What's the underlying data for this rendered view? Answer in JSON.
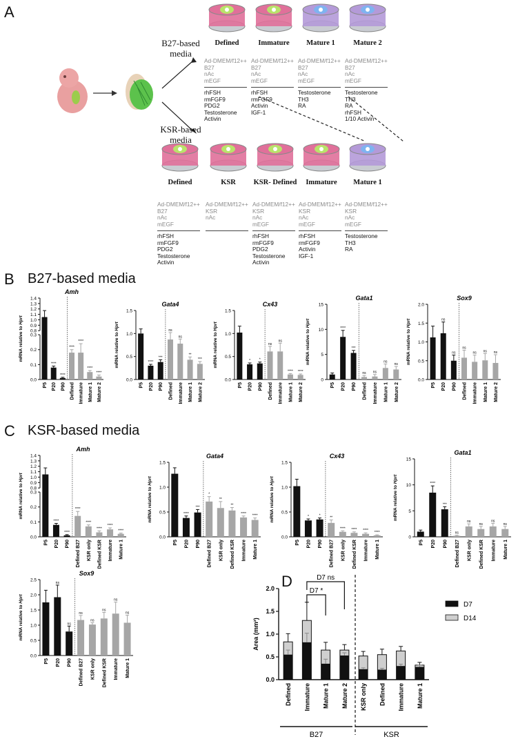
{
  "panel_a": {
    "letter": "A",
    "b27_label": "B27-based media",
    "ksr_label": "KSR-based media",
    "b27_dishes": [
      {
        "title": "Defined",
        "base": [
          "Ad-DMEM/f12++",
          "B27",
          "nAc",
          "mEGF"
        ],
        "add": [
          "rhFSH",
          "rmFGF9",
          "PDG2",
          "Testosterone",
          "Activin"
        ],
        "color": "#e0709a"
      },
      {
        "title": "Immature",
        "base": [
          "Ad-DMEM/f12++",
          "B27",
          "nAc",
          "mEGF"
        ],
        "add": [
          "rhFSH",
          "rmFGF9",
          "Activin",
          "IGF-1"
        ],
        "color": "#e0709a"
      },
      {
        "title": "Mature 1",
        "base": [
          "Ad-DMEM/f12++",
          "B27",
          "nAc",
          "mEGF"
        ],
        "add": [
          "Testosterone",
          "TH3",
          "RA"
        ],
        "color": "#b49ad8"
      },
      {
        "title": "Mature 2",
        "base": [
          "Ad-DMEM/f12++",
          "B27",
          "nAc",
          "mEGF"
        ],
        "add": [
          "Testosterone",
          "TH3",
          "RA",
          "rhFSH",
          "1/10 Activin"
        ],
        "color": "#b49ad8"
      }
    ],
    "ksr_dishes": [
      {
        "title": "Defined",
        "base": [
          "Ad-DMEM/f12++",
          "B27",
          "nAc",
          "mEGF"
        ],
        "add": [
          "rhFSH",
          "rmFGF9",
          "PDG2",
          "Testosterone",
          "Activin"
        ],
        "color": "#e0709a"
      },
      {
        "title": "KSR",
        "base": [
          "Ad-DMEM/f12++",
          "KSR",
          "nAc"
        ],
        "add": [],
        "color": "#e0709a"
      },
      {
        "title": "KSR- Defined",
        "base": [
          "Ad-DMEM/f12++",
          "KSR",
          "nAc",
          "mEGF"
        ],
        "add": [
          "rhFSH",
          "rmFGF9",
          "PDG2",
          "Testosterone",
          "Activin"
        ],
        "color": "#e0709a"
      },
      {
        "title": "Immature",
        "base": [
          "Ad-DMEM/f12++",
          "KSR",
          "nAc",
          "mEGF"
        ],
        "add": [
          "rhFSH",
          "rmFGF9",
          "Activin",
          "IGF-1"
        ],
        "color": "#e0709a"
      },
      {
        "title": "Mature 1",
        "base": [
          "Ad-DMEM/f12++",
          "KSR",
          "nAc",
          "mEGF"
        ],
        "add": [
          "Testosterone",
          "TH3",
          "RA"
        ],
        "color": "#b49ad8"
      }
    ]
  },
  "panel_b": {
    "letter": "B",
    "title": "B27-based media"
  },
  "panel_c": {
    "letter": "C",
    "title": "KSR-based media"
  },
  "panel_d": {
    "letter": "D"
  },
  "ylabel_mrna": "mRNA relative to",
  "ylabel_gene": "Hprt",
  "chart_data": [
    {
      "id": "B-Amh",
      "panel": "B",
      "type": "bar",
      "title": "Amh",
      "broken": true,
      "categories": [
        "P5",
        "P20",
        "P90",
        "Defined",
        "Immature",
        "Mature 1",
        "Mature 2"
      ],
      "values": [
        1.05,
        0.08,
        0.01,
        0.18,
        0.18,
        0.05,
        0.02
      ],
      "errors": [
        0.12,
        0.01,
        0.005,
        0.02,
        0.06,
        0.01,
        0.01
      ],
      "sig": [
        "",
        "****",
        "****",
        "****",
        "****",
        "****",
        "****"
      ],
      "ticks_low": [
        "0.0",
        "0.1",
        "0.2",
        "0.3"
      ],
      "ticks_high": [
        "0.8",
        "0.9",
        "1.0",
        "1.1",
        "1.2",
        "1.3",
        "1.4"
      ]
    },
    {
      "id": "B-Gata4",
      "panel": "B",
      "type": "bar",
      "title": "Gata4",
      "ylim": [
        0,
        1.5
      ],
      "categories": [
        "P5",
        "P20",
        "P90",
        "Defined",
        "Immature",
        "Mature 1",
        "Mature 2"
      ],
      "values": [
        1.0,
        0.3,
        0.38,
        0.87,
        0.78,
        0.43,
        0.34
      ],
      "errors": [
        0.1,
        0.03,
        0.05,
        0.15,
        0.1,
        0.06,
        0.05
      ],
      "sig": [
        "",
        "****",
        "***",
        "ns",
        "ns",
        "**",
        "***"
      ],
      "ticks": [
        "0.0",
        "0.5",
        "1.0",
        "1.5"
      ]
    },
    {
      "id": "B-Cx43",
      "panel": "B",
      "type": "bar",
      "title": "Cx43",
      "ylim": [
        0,
        1.5
      ],
      "categories": [
        "P5",
        "P20",
        "P90",
        "Defined",
        "Immature",
        "Mature 1",
        "Mature 2"
      ],
      "values": [
        1.02,
        0.33,
        0.35,
        0.61,
        0.61,
        0.11,
        0.1
      ],
      "errors": [
        0.14,
        0.03,
        0.03,
        0.11,
        0.18,
        0.02,
        0.02
      ],
      "sig": [
        "",
        "*",
        "*",
        "ns",
        "ns",
        "****",
        "****"
      ],
      "ticks": [
        "0.0",
        "0.5",
        "1.0",
        "1.5"
      ]
    },
    {
      "id": "B-Gata1",
      "panel": "B",
      "type": "bar",
      "title": "Gata1",
      "ylim": [
        0,
        15
      ],
      "categories": [
        "P5",
        "P20",
        "P90",
        "Defined",
        "Immature",
        "Mature 1",
        "Mature 2"
      ],
      "values": [
        1.0,
        8.5,
        5.3,
        0.5,
        0.6,
        2.3,
        2.0
      ],
      "errors": [
        0.3,
        1.3,
        0.5,
        0.3,
        0.4,
        0.8,
        0.6
      ],
      "sig": [
        "",
        "****",
        "***",
        "ns",
        "ns",
        "ns",
        "ns"
      ],
      "ticks": [
        "0",
        "5",
        "10",
        "15"
      ]
    },
    {
      "id": "B-Sox9",
      "panel": "B",
      "type": "bar",
      "title": "Sox9",
      "ylim": [
        0,
        2.0
      ],
      "categories": [
        "P5",
        "P20",
        "P90",
        "Defined",
        "Immature",
        "Mature 1",
        "Mature 2"
      ],
      "values": [
        1.12,
        1.23,
        0.5,
        0.58,
        0.47,
        0.51,
        0.44
      ],
      "errors": [
        0.3,
        0.3,
        0.15,
        0.2,
        0.18,
        0.18,
        0.22
      ],
      "sig": [
        "",
        "ns",
        "ns",
        "ns",
        "ns",
        "ns",
        "ns"
      ],
      "ticks": [
        "0.0",
        "0.5",
        "1.0",
        "1.5",
        "2.0"
      ]
    },
    {
      "id": "C-Amh",
      "panel": "C",
      "type": "bar",
      "title": "Amh",
      "broken": true,
      "categories": [
        "P5",
        "P20",
        "P90",
        "Defined B27",
        "KSR only",
        "Defined KSR",
        "Immature",
        "Mature 1"
      ],
      "values": [
        1.05,
        0.08,
        0.01,
        0.14,
        0.07,
        0.03,
        0.05,
        0.02
      ],
      "errors": [
        0.12,
        0.01,
        0.005,
        0.03,
        0.01,
        0.01,
        0.01,
        0.005
      ],
      "sig": [
        "",
        "****",
        "****",
        "****",
        "****",
        "****",
        "****",
        "****"
      ],
      "ticks_low": [
        "0.0",
        "0.1",
        "0.2",
        "0.3"
      ],
      "ticks_high": [
        "0.8",
        "0.9",
        "1.0",
        "1.1",
        "1.2",
        "1.3",
        "1.4"
      ]
    },
    {
      "id": "C-Gata4",
      "panel": "C",
      "type": "bar",
      "title": "Gata4",
      "ylim": [
        0,
        1.5
      ],
      "categories": [
        "P5",
        "P20",
        "P90",
        "Defined B27",
        "KSR only",
        "Defined KSR",
        "Immature",
        "Mature 1"
      ],
      "values": [
        1.27,
        0.38,
        0.49,
        0.71,
        0.58,
        0.53,
        0.39,
        0.34
      ],
      "errors": [
        0.12,
        0.04,
        0.06,
        0.1,
        0.13,
        0.06,
        0.03,
        0.04
      ],
      "sig": [
        "",
        "****",
        "***",
        "*",
        "**",
        "**",
        "****",
        "****"
      ],
      "ticks": [
        "0.0",
        "0.5",
        "1.0",
        "1.5"
      ]
    },
    {
      "id": "C-Cx43",
      "panel": "C",
      "type": "bar",
      "title": "Cx43",
      "ylim": [
        0,
        1.5
      ],
      "categories": [
        "P5",
        "P20",
        "P90",
        "Defined B27",
        "KSR only",
        "Defined KSR",
        "Immature",
        "Mature 1"
      ],
      "values": [
        1.02,
        0.33,
        0.35,
        0.28,
        0.1,
        0.08,
        0.06,
        0.03
      ],
      "errors": [
        0.14,
        0.03,
        0.03,
        0.06,
        0.02,
        0.02,
        0.02,
        0.01
      ],
      "sig": [
        "",
        "*",
        "*",
        "**",
        "****",
        "****",
        "****",
        "****"
      ],
      "ticks": [
        "0.0",
        "0.5",
        "1.0",
        "1.5"
      ]
    },
    {
      "id": "C-Gata1",
      "panel": "C",
      "type": "bar",
      "title": "Gata1",
      "ylim": [
        0,
        15
      ],
      "categories": [
        "P5",
        "P20",
        "P90",
        "Defined B27",
        "KSR only",
        "Defined KSR",
        "Immature",
        "Mature 1"
      ],
      "values": [
        1.0,
        8.5,
        5.3,
        0.2,
        2.0,
        1.5,
        2.0,
        1.5
      ],
      "errors": [
        0.3,
        1.3,
        0.5,
        0.1,
        0.5,
        0.5,
        0.6,
        0.5
      ],
      "sig": [
        "",
        "****",
        "***",
        "ns",
        "ns",
        "ns",
        "ns",
        "ns"
      ],
      "ticks": [
        "0",
        "5",
        "10",
        "15"
      ]
    },
    {
      "id": "C-Sox9",
      "panel": "C",
      "type": "bar",
      "title": "Sox9",
      "ylim": [
        0,
        2.5
      ],
      "categories": [
        "P5",
        "P20",
        "P90",
        "Defined B27",
        "KSR only",
        "Defined KSR",
        "Immature",
        "Mature 1"
      ],
      "values": [
        1.75,
        1.92,
        0.79,
        1.17,
        1.02,
        1.22,
        1.38,
        1.08
      ],
      "errors": [
        0.4,
        0.4,
        0.18,
        0.15,
        0.06,
        0.2,
        0.38,
        0.25
      ],
      "sig": [
        "",
        "ns",
        "ns",
        "ns",
        "ns",
        "ns",
        "ns",
        "ns"
      ],
      "ticks": [
        "0.0",
        "0.5",
        "1.0",
        "1.5",
        "2.0",
        "2.5"
      ]
    },
    {
      "id": "D-Area",
      "panel": "D",
      "type": "bar",
      "ylabel": "Area (mm²)",
      "ylim": [
        0,
        2.0
      ],
      "categories": [
        "Defined",
        "Immature",
        "Mature 1",
        "Mature 2",
        "KSR only",
        "Defined",
        "Immature",
        "Mature 1"
      ],
      "groups": [
        {
          "label": "B27",
          "from": 0,
          "to": 3
        },
        {
          "label": "KSR",
          "from": 4,
          "to": 7
        }
      ],
      "series": [
        {
          "name": "D7",
          "color": "#111111",
          "values": [
            0.55,
            0.82,
            0.35,
            0.53,
            0.23,
            0.22,
            0.3,
            0.28
          ],
          "errors": [
            0.1,
            0.2,
            0.1,
            0.06,
            0.03,
            0.03,
            0.04,
            0.04
          ]
        },
        {
          "name": "D14",
          "color": "#cfcfcf",
          "values": [
            0.83,
            1.3,
            0.65,
            0.65,
            0.52,
            0.55,
            0.63,
            0.32
          ],
          "errors": [
            0.18,
            0.4,
            0.17,
            0.12,
            0.1,
            0.12,
            0.1,
            0.06
          ]
        }
      ],
      "comparisons": [
        {
          "label": "D7 ns",
          "from": 1,
          "to": 3
        },
        {
          "label": "D7 *",
          "from": 1,
          "to": 2
        }
      ],
      "ticks": [
        "0.0",
        "0.5",
        "1.0",
        "1.5",
        "2.0"
      ]
    }
  ]
}
